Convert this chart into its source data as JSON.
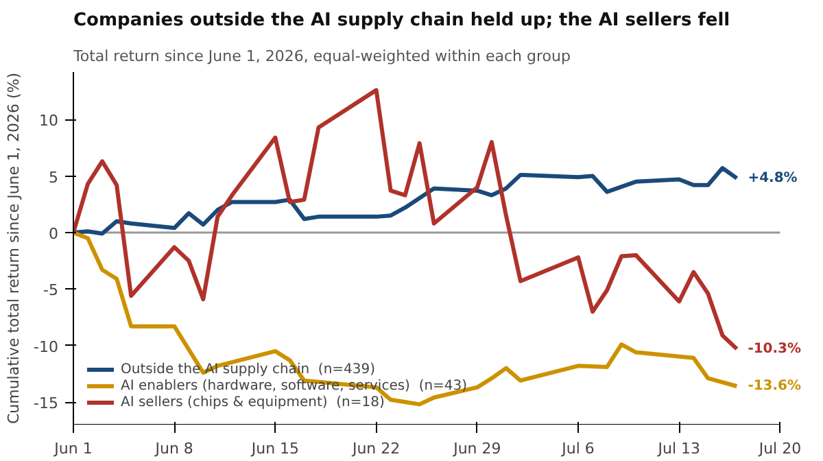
{
  "chart_data": {
    "type": "line",
    "title": "Companies outside the AI supply chain held up; the AI sellers fell",
    "subtitle": "Total return since June 1, 2026, equal-weighted within each group",
    "ylabel": "Cumulative total return since June 1, 2026 (%)",
    "xlim": [
      "2026-06-01",
      "2026-07-20"
    ],
    "xticks": [
      {
        "value": "2026-06-01",
        "label": "Jun 1"
      },
      {
        "value": "2026-06-08",
        "label": "Jun 8"
      },
      {
        "value": "2026-06-15",
        "label": "Jun 15"
      },
      {
        "value": "2026-06-22",
        "label": "Jun 22"
      },
      {
        "value": "2026-06-29",
        "label": "Jun 29"
      },
      {
        "value": "2026-07-06",
        "label": "Jul 6"
      },
      {
        "value": "2026-07-13",
        "label": "Jul 13"
      },
      {
        "value": "2026-07-20",
        "label": "Jul 20"
      }
    ],
    "ylim": [
      -17,
      14.2
    ],
    "yticks": [
      -15,
      -10,
      -5,
      0,
      5,
      10
    ],
    "grid": false,
    "legend": "bottom left",
    "marker": "none",
    "line_style": "solid",
    "ref_lines": [
      {
        "axis": "y",
        "value": 0,
        "color": "#999999"
      }
    ],
    "series": [
      {
        "name": "Outside the AI supply chain  (n=439)",
        "color": "#1a4a7a",
        "x": [
          "2026-06-01",
          "2026-06-02",
          "2026-06-03",
          "2026-06-04",
          "2026-06-05",
          "2026-06-08",
          "2026-06-09",
          "2026-06-10",
          "2026-06-11",
          "2026-06-12",
          "2026-06-15",
          "2026-06-16",
          "2026-06-17",
          "2026-06-18",
          "2026-06-22",
          "2026-06-23",
          "2026-06-24",
          "2026-06-26",
          "2026-06-29",
          "2026-06-30",
          "2026-07-01",
          "2026-07-02",
          "2026-07-06",
          "2026-07-07",
          "2026-07-08",
          "2026-07-10",
          "2026-07-13",
          "2026-07-14",
          "2026-07-15",
          "2026-07-16",
          "2026-07-17"
        ],
        "values": [
          0,
          0.1,
          -0.1,
          1.0,
          0.8,
          0.4,
          1.7,
          0.7,
          2.0,
          2.7,
          2.7,
          2.9,
          1.2,
          1.4,
          1.4,
          1.5,
          2.2,
          3.9,
          3.7,
          3.3,
          3.9,
          5.1,
          4.9,
          5.0,
          3.6,
          4.5,
          4.7,
          4.2,
          4.2,
          5.7,
          4.8
        ]
      },
      {
        "name": "AI enablers (hardware, software, services)  (n=43)",
        "color": "#cc9200",
        "x": [
          "2026-06-01",
          "2026-06-02",
          "2026-06-03",
          "2026-06-04",
          "2026-06-05",
          "2026-06-08",
          "2026-06-10",
          "2026-06-11",
          "2026-06-15",
          "2026-06-16",
          "2026-06-17",
          "2026-06-22",
          "2026-06-23",
          "2026-06-24",
          "2026-06-25",
          "2026-06-26",
          "2026-06-29",
          "2026-06-30",
          "2026-07-01",
          "2026-07-02",
          "2026-07-06",
          "2026-07-08",
          "2026-07-09",
          "2026-07-10",
          "2026-07-14",
          "2026-07-15",
          "2026-07-17"
        ],
        "values": [
          0,
          -0.5,
          -3.3,
          -4.1,
          -8.3,
          -8.3,
          -12.4,
          -11.8,
          -10.5,
          -11.3,
          -13.1,
          -13.7,
          -14.8,
          -15.0,
          -15.2,
          -14.6,
          -13.7,
          -12.9,
          -12.0,
          -13.1,
          -11.8,
          -11.9,
          -9.9,
          -10.6,
          -11.1,
          -12.9,
          -13.6
        ]
      },
      {
        "name": "AI sellers (chips & equipment)  (n=18)",
        "color": "#b0322a",
        "x": [
          "2026-06-01",
          "2026-06-02",
          "2026-06-03",
          "2026-06-04",
          "2026-06-05",
          "2026-06-08",
          "2026-06-09",
          "2026-06-10",
          "2026-06-11",
          "2026-06-12",
          "2026-06-15",
          "2026-06-16",
          "2026-06-17",
          "2026-06-18",
          "2026-06-22",
          "2026-06-23",
          "2026-06-24",
          "2026-06-25",
          "2026-06-26",
          "2026-06-29",
          "2026-06-30",
          "2026-07-01",
          "2026-07-02",
          "2026-07-06",
          "2026-07-07",
          "2026-07-08",
          "2026-07-09",
          "2026-07-10",
          "2026-07-13",
          "2026-07-14",
          "2026-07-15",
          "2026-07-16",
          "2026-07-17"
        ],
        "values": [
          0,
          4.3,
          6.3,
          4.2,
          -5.6,
          -1.3,
          -2.5,
          -5.9,
          1.4,
          3.3,
          8.4,
          2.7,
          2.9,
          9.3,
          12.6,
          3.7,
          3.3,
          7.9,
          0.8,
          4.0,
          8.0,
          1.5,
          -4.3,
          -2.2,
          -7.0,
          -5.1,
          -2.1,
          -2.0,
          -6.1,
          -3.5,
          -5.4,
          -9.1,
          -10.3
        ]
      }
    ],
    "annotations": [
      {
        "text": "+4.8%",
        "x": "2026-07-17",
        "y": 4.8
      },
      {
        "text": "-10.3%",
        "x": "2026-07-17",
        "y": -10.3
      },
      {
        "text": "-13.6%",
        "x": "2026-07-17",
        "y": -13.6
      }
    ]
  }
}
